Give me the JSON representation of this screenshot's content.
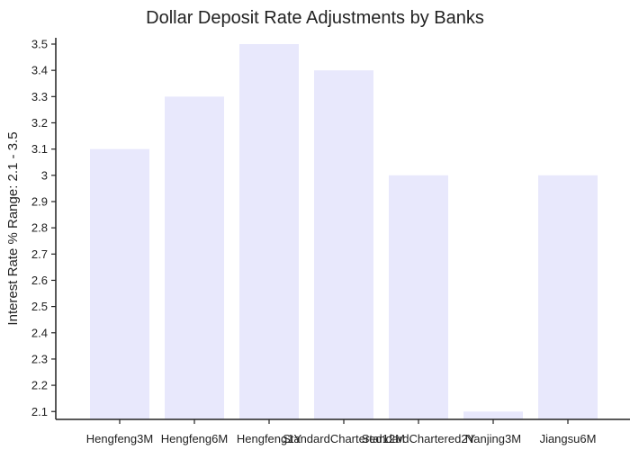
{
  "chart_data": {
    "type": "bar",
    "title": "Dollar Deposit Rate Adjustments by Banks",
    "xlabel": "",
    "ylabel": "Interest Rate % Range: 2.1 - 3.5",
    "categories": [
      "Hengfeng3M",
      "Hengfeng6M",
      "Hengfeng1Y",
      "StandardChartered12M",
      "StandardChartered2Y",
      "Nanjing3M",
      "Jiangsu6M"
    ],
    "values": [
      3.1,
      3.3,
      3.5,
      3.4,
      3.0,
      2.1,
      3.0
    ],
    "ylim": [
      2.07,
      3.5
    ],
    "yticks": [
      "2.1",
      "2.2",
      "2.3",
      "2.4",
      "2.5",
      "2.6",
      "2.7",
      "2.8",
      "2.9",
      "3",
      "3.1",
      "3.2",
      "3.3",
      "3.4",
      "3.5"
    ],
    "bar_color": "#e8e8fc",
    "grid": false,
    "legend": "none"
  }
}
